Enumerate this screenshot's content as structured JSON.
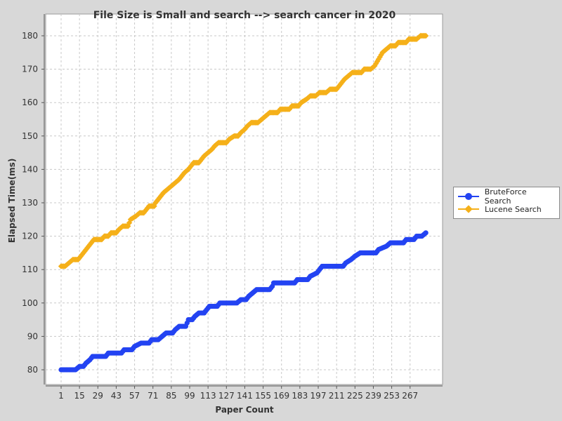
{
  "chart_data": {
    "type": "line",
    "title": "File Size is Small and search --> search cancer in 2020",
    "xlabel": "Paper Count",
    "ylabel": "Elapsed Time(ms)",
    "x_range": [
      1,
      280
    ],
    "ylim": [
      77,
      183
    ],
    "x_ticks": [
      "1",
      "15",
      "29",
      "43",
      "57",
      "71",
      "85",
      "99",
      "113",
      "127",
      "141",
      "155",
      "169",
      "183",
      "197",
      "211",
      "225",
      "239",
      "253",
      "267"
    ],
    "y_ticks": [
      80,
      90,
      100,
      110,
      120,
      130,
      140,
      150,
      160,
      170,
      180
    ],
    "grid": true,
    "legend_position": "right",
    "series": [
      {
        "name": "BruteForce Search",
        "color": "#2343f2",
        "marker": "circle",
        "points": [
          [
            1,
            80
          ],
          [
            12,
            80
          ],
          [
            15,
            81
          ],
          [
            18,
            81
          ],
          [
            20,
            82
          ],
          [
            23,
            83
          ],
          [
            25,
            84
          ],
          [
            35,
            84
          ],
          [
            37,
            85
          ],
          [
            47,
            85
          ],
          [
            49,
            86
          ],
          [
            55,
            86
          ],
          [
            57,
            87
          ],
          [
            62,
            88
          ],
          [
            68,
            88
          ],
          [
            70,
            89
          ],
          [
            75,
            89
          ],
          [
            78,
            90
          ],
          [
            81,
            91
          ],
          [
            86,
            91
          ],
          [
            88,
            92
          ],
          [
            91,
            93
          ],
          [
            96,
            93
          ],
          [
            98,
            95
          ],
          [
            101,
            95
          ],
          [
            103,
            96
          ],
          [
            106,
            97
          ],
          [
            110,
            97
          ],
          [
            112,
            98
          ],
          [
            114,
            99
          ],
          [
            120,
            99
          ],
          [
            122,
            100
          ],
          [
            135,
            100
          ],
          [
            138,
            101
          ],
          [
            142,
            101
          ],
          [
            144,
            102
          ],
          [
            147,
            103
          ],
          [
            150,
            104
          ],
          [
            160,
            104
          ],
          [
            162,
            105
          ],
          [
            163,
            106
          ],
          [
            179,
            106
          ],
          [
            181,
            107
          ],
          [
            189,
            107
          ],
          [
            191,
            108
          ],
          [
            196,
            109
          ],
          [
            198,
            110
          ],
          [
            200,
            111
          ],
          [
            216,
            111
          ],
          [
            218,
            112
          ],
          [
            222,
            113
          ],
          [
            225,
            114
          ],
          [
            229,
            115
          ],
          [
            241,
            115
          ],
          [
            243,
            116
          ],
          [
            249,
            117
          ],
          [
            252,
            118
          ],
          [
            262,
            118
          ],
          [
            264,
            119
          ],
          [
            270,
            119
          ],
          [
            272,
            120
          ],
          [
            276,
            120
          ],
          [
            279,
            121
          ]
        ]
      },
      {
        "name": "Lucene Search",
        "color": "#f5b019",
        "marker": "diamond",
        "points": [
          [
            1,
            111
          ],
          [
            4,
            111
          ],
          [
            7,
            112
          ],
          [
            10,
            113
          ],
          [
            14,
            113
          ],
          [
            16,
            114
          ],
          [
            18,
            115
          ],
          [
            20,
            116
          ],
          [
            22,
            117
          ],
          [
            24,
            118
          ],
          [
            26,
            119
          ],
          [
            32,
            119
          ],
          [
            34,
            120
          ],
          [
            37,
            120
          ],
          [
            39,
            121
          ],
          [
            43,
            121
          ],
          [
            45,
            122
          ],
          [
            48,
            123
          ],
          [
            52,
            123
          ],
          [
            54,
            125
          ],
          [
            58,
            126
          ],
          [
            61,
            127
          ],
          [
            64,
            127
          ],
          [
            66,
            128
          ],
          [
            68,
            129
          ],
          [
            72,
            129
          ],
          [
            73,
            130
          ],
          [
            75,
            131
          ],
          [
            77,
            132
          ],
          [
            79,
            133
          ],
          [
            82,
            134
          ],
          [
            85,
            135
          ],
          [
            88,
            136
          ],
          [
            91,
            137
          ],
          [
            93,
            138
          ],
          [
            95,
            139
          ],
          [
            98,
            140
          ],
          [
            100,
            141
          ],
          [
            102,
            142
          ],
          [
            106,
            142
          ],
          [
            108,
            143
          ],
          [
            110,
            144
          ],
          [
            113,
            145
          ],
          [
            116,
            146
          ],
          [
            118,
            147
          ],
          [
            121,
            148
          ],
          [
            127,
            148
          ],
          [
            129,
            149
          ],
          [
            133,
            150
          ],
          [
            136,
            150
          ],
          [
            138,
            151
          ],
          [
            141,
            152
          ],
          [
            143,
            153
          ],
          [
            146,
            154
          ],
          [
            151,
            154
          ],
          [
            154,
            155
          ],
          [
            157,
            156
          ],
          [
            160,
            157
          ],
          [
            166,
            157
          ],
          [
            168,
            158
          ],
          [
            175,
            158
          ],
          [
            177,
            159
          ],
          [
            182,
            159
          ],
          [
            184,
            160
          ],
          [
            188,
            161
          ],
          [
            191,
            162
          ],
          [
            195,
            162
          ],
          [
            198,
            163
          ],
          [
            203,
            163
          ],
          [
            206,
            164
          ],
          [
            211,
            164
          ],
          [
            213,
            165
          ],
          [
            215,
            166
          ],
          [
            217,
            167
          ],
          [
            220,
            168
          ],
          [
            223,
            169
          ],
          [
            230,
            169
          ],
          [
            232,
            170
          ],
          [
            237,
            170
          ],
          [
            240,
            171
          ],
          [
            243,
            173
          ],
          [
            246,
            175
          ],
          [
            249,
            176
          ],
          [
            252,
            177
          ],
          [
            256,
            177
          ],
          [
            258,
            178
          ],
          [
            264,
            178
          ],
          [
            266,
            179
          ],
          [
            272,
            179
          ],
          [
            275,
            180
          ],
          [
            279,
            180
          ]
        ]
      }
    ]
  }
}
